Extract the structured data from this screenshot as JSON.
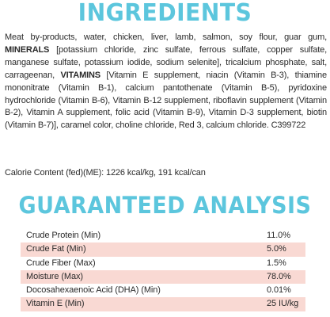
{
  "colors": {
    "heading": "#5cc6dd",
    "row_shade": "#f9d9d3",
    "text": "#2b2b2b"
  },
  "ingredients": {
    "heading": "INGREDIENTS",
    "segments": [
      {
        "text": "Meat by-products, water, chicken, liver, lamb, salmon, soy flour, guar gum, ",
        "bold": false
      },
      {
        "text": "MINERALS",
        "bold": true
      },
      {
        "text": " [potassium chloride, zinc sulfate, ferrous sulfate, copper sulfate, manganese sulfate, potassium iodide, sodium selenite], tricalcium phosphate, salt, carrageenan, ",
        "bold": false
      },
      {
        "text": "VITAMINS",
        "bold": true
      },
      {
        "text": " [Vitamin E supplement, niacin (Vitamin B-3), thiamine mononitrate (Vitamin B-1), calcium pantothenate (Vitamin B-5), pyridoxine hydrochloride (Vitamin B-6), Vitamin B-12 supplement, riboflavin supplement (Vitamin B-2), Vitamin A supplement, folic acid (Vitamin B-9), Vitamin D-3 supplement, biotin (Vitamin B-7)], caramel color, choline chloride, Red 3, calcium chloride. C399722",
        "bold": false
      }
    ],
    "calorie_content": "Calorie Content (fed)(ME): 1226 kcal/kg, 191 kcal/can"
  },
  "guaranteed_analysis": {
    "heading": "GUARANTEED ANALYSIS",
    "rows": [
      {
        "name": "Crude Protein (Min)",
        "value": "11.0%",
        "shaded": false
      },
      {
        "name": "Crude Fat (Min)",
        "value": "5.0%",
        "shaded": true
      },
      {
        "name": "Crude Fiber (Max)",
        "value": "1.5%",
        "shaded": false
      },
      {
        "name": "Moisture (Max)",
        "value": "78.0%",
        "shaded": true
      },
      {
        "name": "Docosahexaenoic Acid (DHA) (Min)",
        "value": "0.01%",
        "shaded": false
      },
      {
        "name": "Vitamin E (Min)",
        "value": "25 IU/kg",
        "shaded": true
      }
    ]
  }
}
